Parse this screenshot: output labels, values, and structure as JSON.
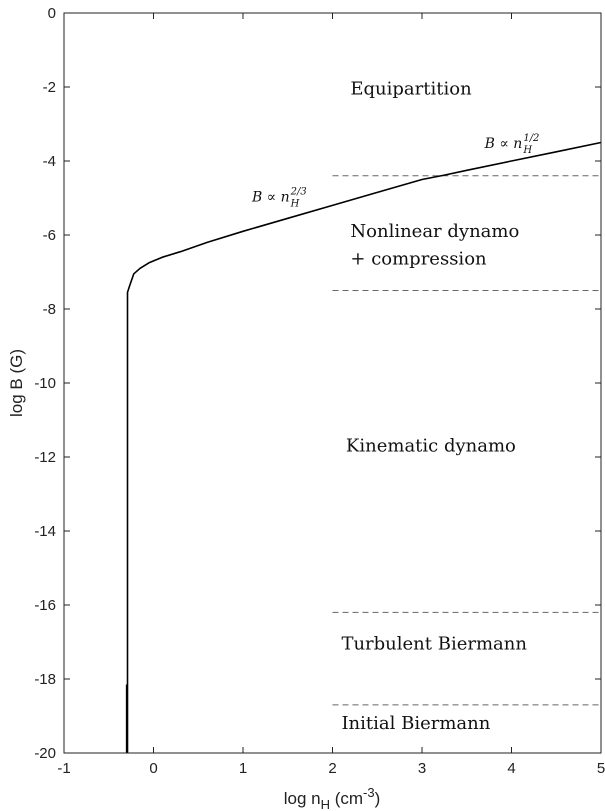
{
  "chart_data": {
    "type": "line",
    "title": "",
    "xlabel": {
      "text": "log n",
      "sub": "H",
      "unit_open": " (cm",
      "unit_sup": "-3",
      "unit_close": ")"
    },
    "ylabel": "log B (G)",
    "xlim": [
      -1,
      5
    ],
    "ylim": [
      -20,
      0
    ],
    "xticks": [
      -1,
      0,
      1,
      2,
      3,
      4,
      5
    ],
    "yticks": [
      0,
      -2,
      -4,
      -6,
      -8,
      -10,
      -12,
      -14,
      -16,
      -18,
      -20
    ],
    "grid": false,
    "series": [
      {
        "name": "",
        "color": "#000000",
        "x": [
          -0.29,
          -0.29,
          -0.27,
          -0.22,
          -0.15,
          -0.05,
          0.1,
          0.3,
          0.6,
          1.0,
          1.5,
          2.0,
          2.5,
          3.0,
          3.25,
          3.5,
          4.0,
          4.5,
          5.0
        ],
        "y": [
          -20.0,
          -7.55,
          -7.4,
          -7.05,
          -6.9,
          -6.75,
          -6.6,
          -6.45,
          -6.2,
          -5.9,
          -5.55,
          -5.2,
          -4.85,
          -4.5,
          -4.38,
          -4.25,
          -4.0,
          -3.75,
          -3.5
        ]
      }
    ],
    "thresholds": [
      {
        "y": -4.4,
        "x_start": 2.0,
        "x_end": 5.0
      },
      {
        "y": -7.5,
        "x_start": 2.0,
        "x_end": 5.0
      },
      {
        "y": -16.2,
        "x_start": 2.0,
        "x_end": 5.0
      },
      {
        "y": -18.7,
        "x_start": 2.0,
        "x_end": 5.0
      }
    ],
    "regions": [
      {
        "label": "Equipartition",
        "x": 2.2,
        "y": -2.2
      },
      {
        "label": "Nonlinear dynamo",
        "x": 2.2,
        "y": -6.05
      },
      {
        "label": "+ compression",
        "x": 2.2,
        "y": -6.8
      },
      {
        "label": "Kinematic dynamo",
        "x": 2.15,
        "y": -11.85
      },
      {
        "label": "Turbulent Biermann",
        "x": 2.1,
        "y": -17.2
      },
      {
        "label": "Initial Biermann",
        "x": 2.1,
        "y": -19.35
      }
    ],
    "annotations": [
      {
        "base": "B ∝ n",
        "sub": "H",
        "sup": "2/3",
        "x": 1.1,
        "y": -5.1
      },
      {
        "base": "B ∝ n",
        "sub": "H",
        "sup": "1/2",
        "x": 3.7,
        "y": -3.65
      }
    ],
    "stub_segment": {
      "x": -0.3,
      "y_start": -20.0,
      "y_end": -18.15
    }
  }
}
